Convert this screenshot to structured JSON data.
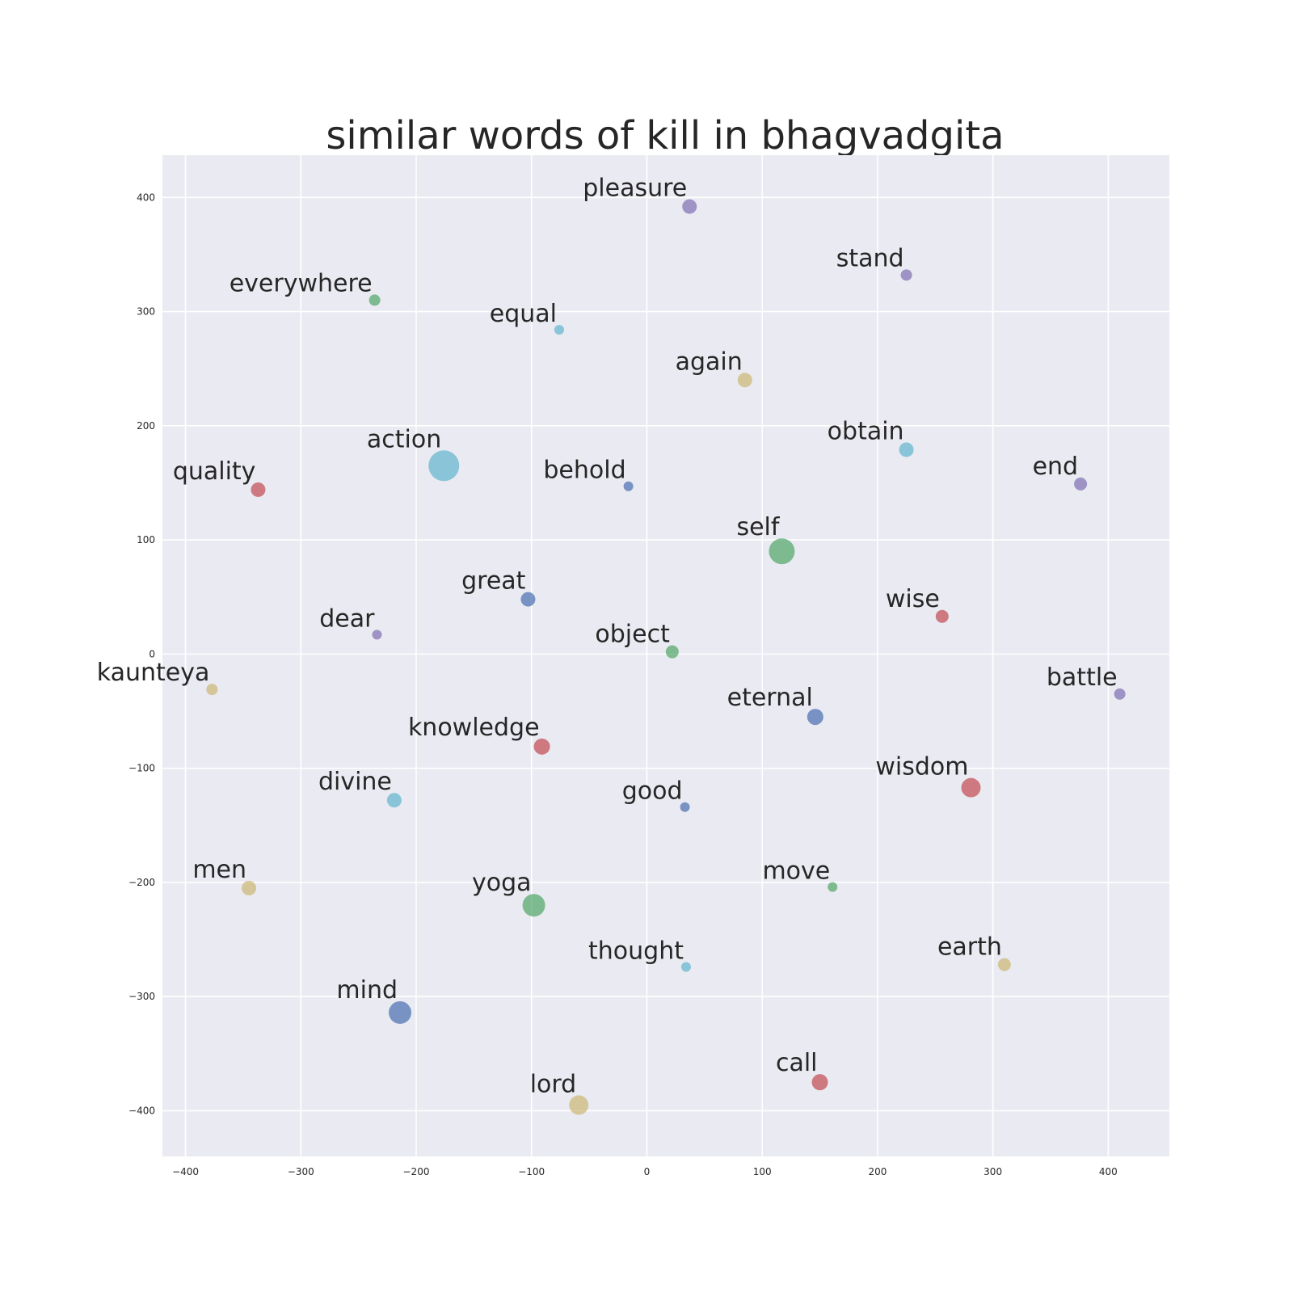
{
  "chart_data": {
    "type": "scatter",
    "title": "similar words of kill in bhagvadgita",
    "xlabel": "",
    "ylabel": "",
    "xlim": [
      -420,
      453
    ],
    "ylim": [
      -440,
      437
    ],
    "xticks": [
      -400,
      -300,
      -200,
      -100,
      0,
      100,
      200,
      300,
      400
    ],
    "yticks": [
      -400,
      -300,
      -200,
      -100,
      0,
      100,
      200,
      300,
      400
    ],
    "grid": true,
    "background": "#eaeaf2",
    "palette": {
      "red": "#c44e52",
      "blue": "#4c72b0",
      "green": "#55a868",
      "purple": "#8172b2",
      "cyan": "#64b5cd",
      "tan": "#ccb974"
    },
    "points": [
      {
        "label": "pleasure",
        "x": 37,
        "y": 392,
        "size": 9,
        "color": "purple"
      },
      {
        "label": "stand",
        "x": 225,
        "y": 332,
        "size": 7,
        "color": "purple"
      },
      {
        "label": "everywhere",
        "x": -236,
        "y": 310,
        "size": 7,
        "color": "green"
      },
      {
        "label": "equal",
        "x": -76,
        "y": 284,
        "size": 6,
        "color": "cyan"
      },
      {
        "label": "again",
        "x": 85,
        "y": 240,
        "size": 9,
        "color": "tan"
      },
      {
        "label": "obtain",
        "x": 225,
        "y": 179,
        "size": 9,
        "color": "cyan"
      },
      {
        "label": "action",
        "x": -176,
        "y": 165,
        "size": 19,
        "color": "cyan"
      },
      {
        "label": "behold",
        "x": -16,
        "y": 147,
        "size": 6,
        "color": "blue"
      },
      {
        "label": "quality",
        "x": -337,
        "y": 144,
        "size": 9,
        "color": "red"
      },
      {
        "label": "end",
        "x": 376,
        "y": 149,
        "size": 8,
        "color": "purple"
      },
      {
        "label": "self",
        "x": 117,
        "y": 90,
        "size": 16,
        "color": "green"
      },
      {
        "label": "great",
        "x": -103,
        "y": 48,
        "size": 9,
        "color": "blue"
      },
      {
        "label": "wise",
        "x": 256,
        "y": 33,
        "size": 8,
        "color": "red"
      },
      {
        "label": "dear",
        "x": -234,
        "y": 17,
        "size": 6,
        "color": "purple"
      },
      {
        "label": "object",
        "x": 22,
        "y": 2,
        "size": 8,
        "color": "green"
      },
      {
        "label": "kaunteya",
        "x": -377,
        "y": -31,
        "size": 7,
        "color": "tan"
      },
      {
        "label": "battle",
        "x": 410,
        "y": -35,
        "size": 7,
        "color": "purple"
      },
      {
        "label": "eternal",
        "x": 146,
        "y": -55,
        "size": 10,
        "color": "blue"
      },
      {
        "label": "knowledge",
        "x": -91,
        "y": -81,
        "size": 10,
        "color": "red"
      },
      {
        "label": "wisdom",
        "x": 281,
        "y": -117,
        "size": 12,
        "color": "red"
      },
      {
        "label": "divine",
        "x": -219,
        "y": -128,
        "size": 9,
        "color": "cyan"
      },
      {
        "label": "good",
        "x": 33,
        "y": -134,
        "size": 6,
        "color": "blue"
      },
      {
        "label": "move",
        "x": 161,
        "y": -204,
        "size": 6,
        "color": "green"
      },
      {
        "label": "men",
        "x": -345,
        "y": -205,
        "size": 9,
        "color": "tan"
      },
      {
        "label": "yoga",
        "x": -98,
        "y": -220,
        "size": 14,
        "color": "green"
      },
      {
        "label": "thought",
        "x": 34,
        "y": -274,
        "size": 6,
        "color": "cyan"
      },
      {
        "label": "earth",
        "x": 310,
        "y": -272,
        "size": 8,
        "color": "tan"
      },
      {
        "label": "mind",
        "x": -214,
        "y": -314,
        "size": 14,
        "color": "blue"
      },
      {
        "label": "call",
        "x": 150,
        "y": -375,
        "size": 10,
        "color": "red"
      },
      {
        "label": "lord",
        "x": -59,
        "y": -395,
        "size": 12,
        "color": "tan"
      }
    ]
  }
}
